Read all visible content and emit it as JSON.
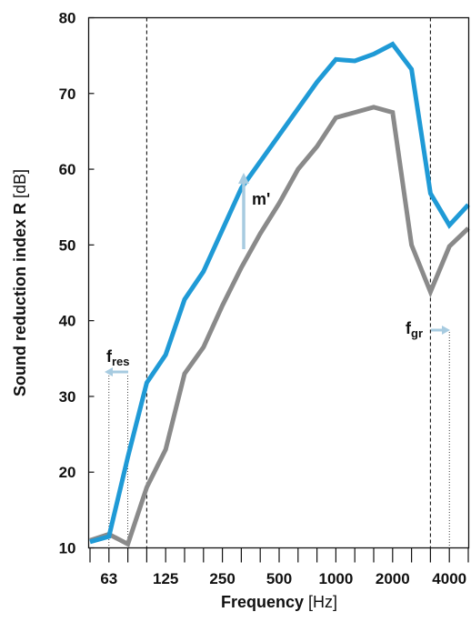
{
  "chart_data": {
    "type": "line",
    "title": "",
    "xlabel": {
      "bold": "Frequency",
      "unit": " [Hz]"
    },
    "ylabel": {
      "bold": "Sound reduction index R",
      "unit": " [dB]"
    },
    "xscale": "log (third-octave bands)",
    "ylim": [
      10,
      80
    ],
    "yticks": [
      10,
      20,
      30,
      40,
      50,
      60,
      70,
      80
    ],
    "x_tick_labels": [
      "63",
      "125",
      "250",
      "500",
      "1000",
      "2000",
      "4000"
    ],
    "x": [
      50,
      63,
      80,
      100,
      125,
      160,
      200,
      250,
      315,
      400,
      500,
      630,
      800,
      1000,
      1250,
      1600,
      2000,
      2500,
      3150,
      4000,
      5000
    ],
    "series": [
      {
        "color": "#1f9ad6",
        "values": [
          10.8,
          11.5,
          22.0,
          31.8,
          35.5,
          42.8,
          46.5,
          52.0,
          57.5,
          61.0,
          64.5,
          68.0,
          71.5,
          74.5,
          74.3,
          75.2,
          76.5,
          73.2,
          56.8,
          52.6,
          55.3
        ]
      },
      {
        "color": "#8a8a8a",
        "values": [
          11.0,
          11.8,
          10.5,
          18.0,
          23.0,
          33.0,
          36.5,
          42.0,
          47.0,
          51.5,
          55.5,
          60.0,
          63.0,
          66.8,
          67.5,
          68.2,
          67.5,
          50.0,
          43.8,
          49.8,
          52.2
        ]
      }
    ],
    "grid": false,
    "reference_lines": [
      {
        "x": 100,
        "style": "dashed"
      },
      {
        "x": 3150,
        "style": "dashed"
      },
      {
        "x": 63,
        "style": "dotted"
      },
      {
        "x": 80,
        "style": "dotted"
      },
      {
        "x": 4000,
        "style": "dotted"
      }
    ],
    "annotations": {
      "fres": {
        "main": "f",
        "sub": "res"
      },
      "mprime": {
        "text": "m'"
      },
      "fgr": {
        "main": "f",
        "sub": "gr"
      }
    },
    "accent_arrow_color": "#a7cbe0"
  }
}
